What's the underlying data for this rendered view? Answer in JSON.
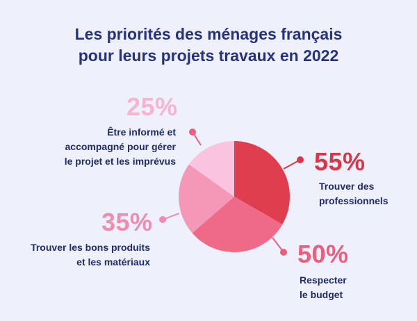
{
  "title": {
    "line1": "Les priorités des ménages français",
    "line2": "pour leurs projets travaux en 2022"
  },
  "colors": {
    "background": "#eef1fb",
    "title": "#26327e",
    "text": "#1f2b6b"
  },
  "chart_data": {
    "type": "pie",
    "title": "Les priorités des ménages français pour leurs projets travaux en 2022",
    "slices": [
      {
        "label": "Trouver des professionnels",
        "label_lines": [
          "Trouver des",
          "professionnels"
        ],
        "value": 55,
        "display": "55%",
        "color": "#df3e4e",
        "pct_color": "#d9364a"
      },
      {
        "label": "Respecter le budget",
        "label_lines": [
          "Respecter",
          "le budget"
        ],
        "value": 50,
        "display": "50%",
        "color": "#ef6a87",
        "pct_color": "#ea5f7e"
      },
      {
        "label": "Trouver les bons produits et les matériaux",
        "label_lines": [
          "Trouver les bons produits",
          "et les matériaux"
        ],
        "value": 35,
        "display": "35%",
        "color": "#f597b6",
        "pct_color": "#f08cae"
      },
      {
        "label": "Être informé et accompagné pour gérer le projet et les imprévus",
        "label_lines": [
          "Être informé et",
          "accompagné pour gérer",
          "le projet et les imprévus"
        ],
        "value": 25,
        "display": "25%",
        "color": "#fac3e0",
        "pct_color": "#f7b3d2"
      }
    ]
  }
}
